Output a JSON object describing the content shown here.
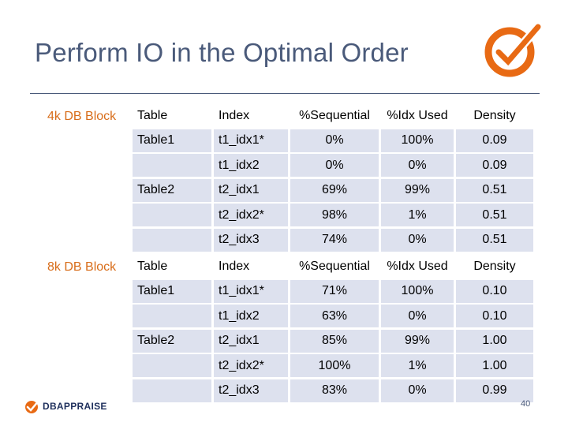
{
  "title": "Perform IO in the Optimal Order",
  "columns": [
    "Table",
    "Index",
    "%Sequential",
    "%Idx Used",
    "Density"
  ],
  "sections": [
    {
      "label": "4k DB Block",
      "rows": [
        {
          "table": "Table1",
          "index": "t1_idx1*",
          "seq": "0%",
          "idx_used": "100%",
          "density": "0.09"
        },
        {
          "table": "",
          "index": "t1_idx2",
          "seq": "0%",
          "idx_used": "0%",
          "density": "0.09"
        },
        {
          "table": "Table2",
          "index": "t2_idx1",
          "seq": "69%",
          "idx_used": "99%",
          "density": "0.51"
        },
        {
          "table": "",
          "index": "t2_idx2*",
          "seq": "98%",
          "idx_used": "1%",
          "density": "0.51"
        },
        {
          "table": "",
          "index": "t2_idx3",
          "seq": "74%",
          "idx_used": "0%",
          "density": "0.51"
        }
      ]
    },
    {
      "label": "8k DB Block",
      "rows": [
        {
          "table": "Table1",
          "index": "t1_idx1*",
          "seq": "71%",
          "idx_used": "100%",
          "density": "0.10"
        },
        {
          "table": "",
          "index": "t1_idx2",
          "seq": "63%",
          "idx_used": "0%",
          "density": "0.10"
        },
        {
          "table": "Table2",
          "index": "t2_idx1",
          "seq": "85%",
          "idx_used": "99%",
          "density": "1.00"
        },
        {
          "table": "",
          "index": "t2_idx2*",
          "seq": "100%",
          "idx_used": "1%",
          "density": "1.00"
        },
        {
          "table": "",
          "index": "t2_idx3",
          "seq": "83%",
          "idx_used": "0%",
          "density": "0.99"
        }
      ]
    }
  ],
  "footer": {
    "logo_text": "DBAPPRAISE",
    "page_number": "40"
  },
  "colors": {
    "accent": "#e86a14",
    "title": "#4a5a7a",
    "row_fill": "#dde1ee",
    "section_label": "#d86d1a"
  }
}
